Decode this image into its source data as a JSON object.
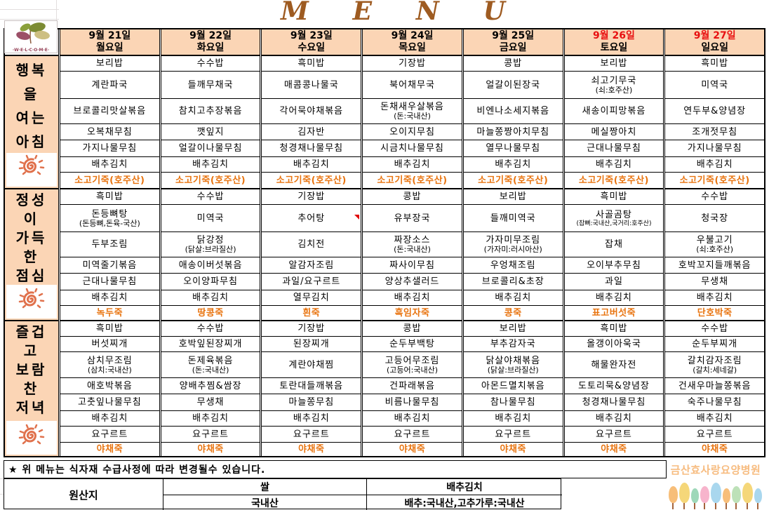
{
  "title": {
    "text": "MENU",
    "letters": [
      "M",
      "E",
      "N",
      "U"
    ]
  },
  "logo": {
    "caption": "·W·E·L·C·O·M·E·"
  },
  "colors": {
    "header_fill": "#fbd5b5",
    "weekend_date": "#e81111",
    "porridge_text": "#e8730e",
    "title_text": "#9e5b21",
    "hospital_text": "#f7bc80",
    "sun_icon": "#e0714c"
  },
  "sections": [
    {
      "id": "breakfast",
      "lines": [
        "행복",
        "을",
        "여는",
        "아침"
      ]
    },
    {
      "id": "lunch",
      "lines": [
        "정성",
        "이",
        "가득",
        "한",
        "점심"
      ]
    },
    {
      "id": "dinner",
      "lines": [
        "즐겁",
        "고",
        "보람",
        "찬",
        "저녁"
      ]
    }
  ],
  "days": [
    {
      "date": "9월 21일",
      "day": "월요일",
      "weekend": false,
      "breakfast": [
        "보리밥",
        "계란파국",
        "브로콜리맛살볶음",
        "오복채무침",
        "가지나물무침",
        "배추김치",
        "소고기죽(호주산)"
      ],
      "lunch": [
        "흑미밥",
        "돈등뼈탕\n(돈등뼈,돈육-국산)",
        "두부조림",
        "미역줄기볶음",
        "근대나물무침",
        "배추김치",
        "녹두죽"
      ],
      "dinner": [
        "흑미밥",
        "버섯찌개",
        "삼치무조림\n(삼치:국내산)",
        "애호박볶음",
        "고춧잎나물무침",
        "배추김치",
        "요구르트",
        "야채죽"
      ]
    },
    {
      "date": "9월 22일",
      "day": "화요일",
      "weekend": false,
      "breakfast": [
        "수수밥",
        "들깨무채국",
        "참치고추장볶음",
        "깻잎지",
        "얼갈이나물무침",
        "배추김치",
        "소고기죽(호주산)"
      ],
      "lunch": [
        "수수밥",
        "미역국",
        "닭강정\n(닭살:브라질산)",
        "애송이버섯볶음",
        "오이양파무침",
        "배추김치",
        "땅콩죽"
      ],
      "dinner": [
        "수수밥",
        "호박잎된장찌개",
        "돈제육볶음\n(돈:국내산)",
        "양배추찜&쌈장",
        "무생채",
        "배추김치",
        "요구르트",
        "야채죽"
      ]
    },
    {
      "date": "9월 23일",
      "day": "수요일",
      "weekend": false,
      "breakfast": [
        "흑미밥",
        "매콤콩나물국",
        "각어묵야채볶음",
        "김자반",
        "청경채나물무침",
        "배추김치",
        "소고기죽(호주산)"
      ],
      "lunch": [
        "기장밥",
        "추어탕",
        "김치전",
        "알감자조림",
        "과일/요구르트",
        "열무김치",
        "흰죽"
      ],
      "dinner": [
        "기장밥",
        "된장찌개",
        "계란야채찜",
        "토란대들깨볶음",
        "마늘쫑무침",
        "배추김치",
        "요구르트",
        "야채죽"
      ]
    },
    {
      "date": "9월 24일",
      "day": "목요일",
      "weekend": false,
      "breakfast": [
        "기장밥",
        "북어채무국",
        "돈채새우살볶음\n(돈:국내산)",
        "오이지무침",
        "시금치나물무침",
        "배추김치",
        "소고기죽(호주산)"
      ],
      "lunch": [
        "콩밥",
        "유부장국",
        "짜장소스\n(돈:국내산)",
        "짜사이무침",
        "양상추샐러드",
        "배추김치",
        "흑임자죽"
      ],
      "dinner": [
        "콩밥",
        "순두부백탕",
        "고등어무조림\n(고등어:국내산)",
        "건파래볶음",
        "비름나물무침",
        "배추김치",
        "요구르트",
        "야채죽"
      ]
    },
    {
      "date": "9월 25일",
      "day": "금요일",
      "weekend": false,
      "breakfast": [
        "콩밥",
        "얼갈이된장국",
        "비엔나소세지볶음",
        "마늘쫑짱아치무침",
        "열무나물무침",
        "배추김치",
        "소고기죽(호주산)"
      ],
      "lunch": [
        "보리밥",
        "들깨미역국",
        "가자미무조림\n(가자미:러시아산)",
        "우엉채조림",
        "브로콜리&초장",
        "배추김치",
        "콩죽"
      ],
      "dinner": [
        "보리밥",
        "부추감자국",
        "닭살야채볶음\n(닭살:브라질산)",
        "아몬드멸치볶음",
        "참나물무침",
        "배추김치",
        "요구르트",
        "야채죽"
      ]
    },
    {
      "date": "9월 26일",
      "day": "토요일",
      "weekend": true,
      "breakfast": [
        "보리밥",
        "쇠고기무국\n(쇠:호주산)",
        "새송이피망볶음",
        "메실짱아치",
        "근대나물무침",
        "배추김치",
        "소고기죽(호주산)"
      ],
      "lunch": [
        "흑미밥",
        "사골곰탕\n(잡뼈:국내산,국거리:호주산)",
        "잡채",
        "오이부추무침",
        "과일",
        "배추김치",
        "표고버섯죽"
      ],
      "dinner": [
        "흑미밥",
        "올갱이아욱국",
        "해물완자전",
        "도토리묵&양념장",
        "청경채나물무침",
        "배추김치",
        "요구르트",
        "야채죽"
      ]
    },
    {
      "date": "9월 27일",
      "day": "일요일",
      "weekend": true,
      "breakfast": [
        "흑미밥",
        "미역국",
        "연두부&양념장",
        "조개젓무침",
        "가지나물무침",
        "배추김치",
        "소고기죽(호주산)"
      ],
      "lunch": [
        "수수밥",
        "청국장",
        "우불고기\n(쇠:호주산)",
        "호박꼬지들깨볶음",
        "무생채",
        "배추김치",
        "단호박죽"
      ],
      "dinner": [
        "수수밥",
        "순두부찌개",
        "갈치감자조림\n(갈치:세네갈)",
        "건새우마늘쫑볶음",
        "숙주나물무침",
        "배추김치",
        "요구르트",
        "야채죽"
      ]
    }
  ],
  "note": "★ 위 메뉴는 식자재 수급사정에 따라 변경될수 있습니다.",
  "origin": {
    "label": "원산지",
    "columns": [
      {
        "header": "쌀",
        "value": "국내산"
      },
      {
        "header": "배추김치",
        "value": "배추:국내산,고추가루:국내산"
      }
    ]
  },
  "footer": {
    "hospital": "금산효사랑요양병원",
    "tree_colors": [
      "#f4a84c",
      "#f2c94c",
      "#7ecba1",
      "#f49bbb",
      "#8cc9e8",
      "#f4a84c",
      "#a7d7a0",
      "#f2c94c",
      "#8cc9e8"
    ]
  }
}
